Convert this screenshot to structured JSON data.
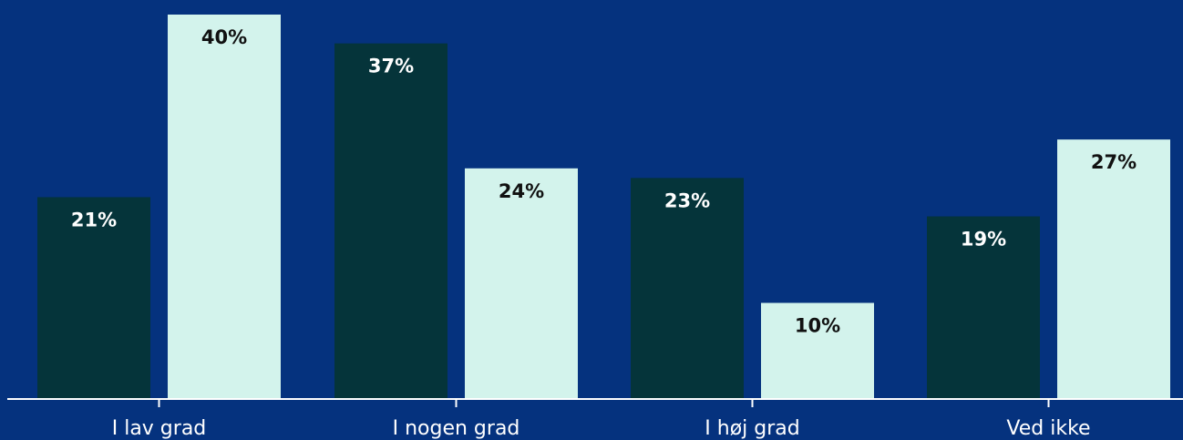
{
  "chart_data": {
    "type": "bar",
    "title": "",
    "xlabel": "",
    "ylabel": "",
    "ylim": [
      0,
      40
    ],
    "grid": false,
    "legend": "none",
    "categories": [
      "I lav grad",
      "I nogen grad",
      "I høj grad",
      "Ved ikke"
    ],
    "series": [
      {
        "values": [
          21,
          37,
          23,
          19
        ],
        "labels": [
          "21%",
          "37%",
          "23%",
          "19%"
        ],
        "color": "#05343a",
        "label_color": "#ffffff"
      },
      {
        "values": [
          40,
          24,
          10,
          27
        ],
        "labels": [
          "40%",
          "24%",
          "10%",
          "27%"
        ],
        "color": "#d3f3ec",
        "label_color": "#111111"
      }
    ]
  },
  "colors": {
    "background": "#05327e",
    "axis": "#ffffff"
  }
}
